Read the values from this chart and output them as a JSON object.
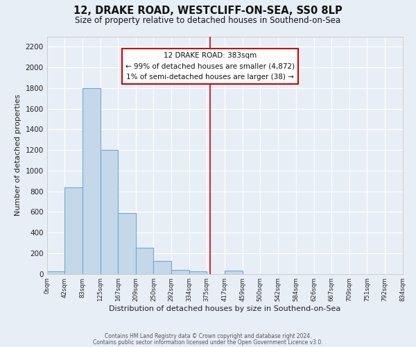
{
  "title": "12, DRAKE ROAD, WESTCLIFF-ON-SEA, SS0 8LP",
  "subtitle": "Size of property relative to detached houses in Southend-on-Sea",
  "xlabel": "Distribution of detached houses by size in Southend-on-Sea",
  "ylabel": "Number of detached properties",
  "footer_line1": "Contains HM Land Registry data © Crown copyright and database right 2024.",
  "footer_line2": "Contains public sector information licensed under the Open Government Licence v3.0.",
  "bar_edges": [
    0,
    42,
    83,
    125,
    167,
    209,
    250,
    292,
    334,
    375,
    417,
    459,
    500,
    542,
    584,
    626,
    667,
    709,
    751,
    792,
    834
  ],
  "bar_heights": [
    25,
    840,
    1800,
    1200,
    590,
    255,
    125,
    40,
    25,
    0,
    30,
    0,
    0,
    0,
    0,
    0,
    0,
    0,
    0,
    0
  ],
  "tick_labels": [
    "0sqm",
    "42sqm",
    "83sqm",
    "125sqm",
    "167sqm",
    "209sqm",
    "250sqm",
    "292sqm",
    "334sqm",
    "375sqm",
    "417sqm",
    "459sqm",
    "500sqm",
    "542sqm",
    "584sqm",
    "626sqm",
    "667sqm",
    "709sqm",
    "751sqm",
    "792sqm",
    "834sqm"
  ],
  "bar_facecolor": "#c5d8ea",
  "bar_edgecolor": "#6aaad4",
  "fig_facecolor": "#e8eef5",
  "ax_facecolor": "#e8eef5",
  "grid_color": "#ffffff",
  "vline_x": 383,
  "vline_color": "#cc0000",
  "annotation_title": "12 DRAKE ROAD: 383sqm",
  "annotation_line1": "← 99% of detached houses are smaller (4,872)",
  "annotation_line2": "1% of semi-detached houses are larger (38) →",
  "ylim": [
    0,
    2300
  ],
  "yticks": [
    0,
    200,
    400,
    600,
    800,
    1000,
    1200,
    1400,
    1600,
    1800,
    2000,
    2200
  ]
}
